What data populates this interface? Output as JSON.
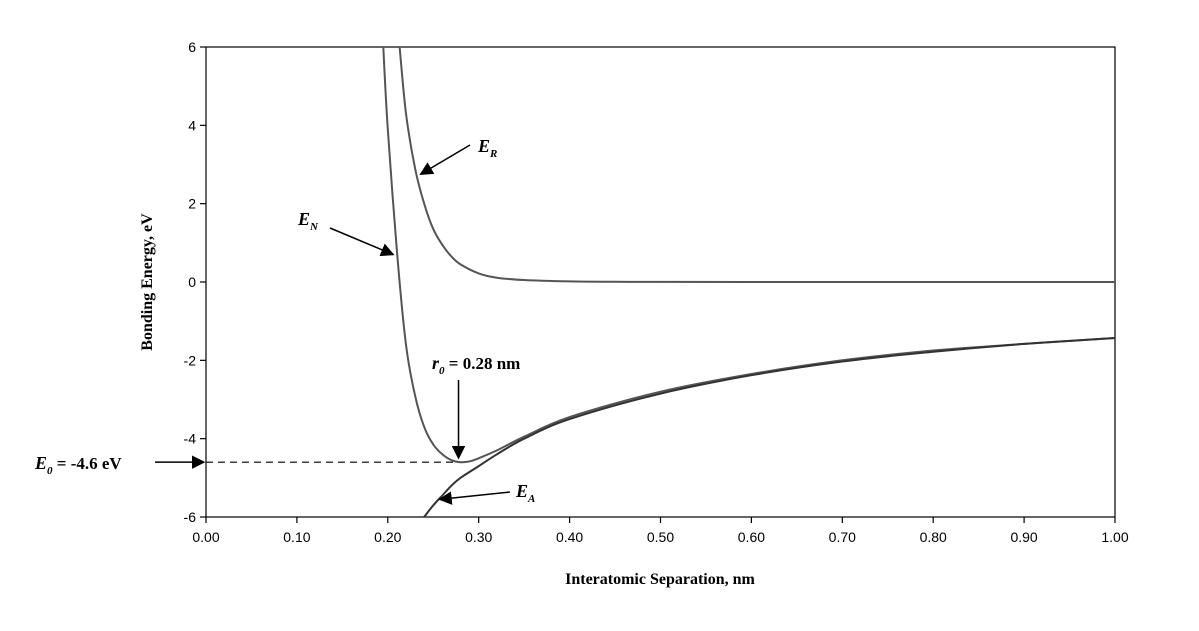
{
  "chart_data": {
    "type": "line",
    "title": "",
    "xlabel": "Interatomic Separation, nm",
    "ylabel": "Bonding Energy, eV",
    "xlim": [
      0,
      1.0
    ],
    "ylim": [
      -6,
      6
    ],
    "xticks": [
      "0.00",
      "0.10",
      "0.20",
      "0.30",
      "0.40",
      "0.50",
      "0.60",
      "0.70",
      "0.80",
      "0.90",
      "1.00"
    ],
    "yticks": [
      "6",
      "4",
      "2",
      "0",
      "-2",
      "-4",
      "-6"
    ],
    "grid": false,
    "series": [
      {
        "name": "E_R",
        "color": "#555555",
        "x": [
          0.213,
          0.22,
          0.23,
          0.24,
          0.25,
          0.26,
          0.27,
          0.28,
          0.3,
          0.32,
          0.35,
          0.4,
          0.45,
          0.5,
          0.6,
          0.8,
          1.0
        ],
        "y": [
          6.0,
          4.3,
          2.9,
          2.0,
          1.35,
          0.95,
          0.65,
          0.45,
          0.22,
          0.11,
          0.05,
          0.015,
          0.005,
          0.002,
          0.0,
          0.0,
          0.0
        ]
      },
      {
        "name": "E_N",
        "color": "#555555",
        "x": [
          0.195,
          0.2,
          0.21,
          0.22,
          0.23,
          0.24,
          0.25,
          0.26,
          0.27,
          0.28,
          0.29,
          0.3,
          0.32,
          0.35,
          0.4,
          0.5,
          0.6,
          0.7,
          0.8,
          0.9,
          1.0
        ],
        "y": [
          6.0,
          3.9,
          0.8,
          -1.6,
          -2.9,
          -3.7,
          -4.15,
          -4.4,
          -4.55,
          -4.6,
          -4.58,
          -4.5,
          -4.3,
          -3.95,
          -3.45,
          -2.8,
          -2.35,
          -2.0,
          -1.75,
          -1.58,
          -1.43
        ]
      },
      {
        "name": "E_A",
        "color": "#333333",
        "x": [
          0.24,
          0.25,
          0.26,
          0.27,
          0.28,
          0.3,
          0.32,
          0.35,
          0.4,
          0.5,
          0.6,
          0.7,
          0.8,
          0.9,
          1.0
        ],
        "y": [
          -6.0,
          -5.7,
          -5.45,
          -5.2,
          -5.0,
          -4.7,
          -4.4,
          -4.0,
          -3.5,
          -2.85,
          -2.38,
          -2.03,
          -1.78,
          -1.58,
          -1.43
        ]
      }
    ],
    "annotations": {
      "er": {
        "main": "E",
        "sub": "R",
        "rest": ""
      },
      "en": {
        "main": "E",
        "sub": "N",
        "rest": ""
      },
      "ea": {
        "main": "E",
        "sub": "A",
        "rest": ""
      },
      "r0": {
        "main": "r",
        "sub": "0",
        "rest": " = 0.28 nm"
      },
      "e0": {
        "main": "E",
        "sub": "0",
        "rest": " = -4.6 eV"
      }
    },
    "e0_value": -4.6,
    "r0_value": 0.28
  }
}
